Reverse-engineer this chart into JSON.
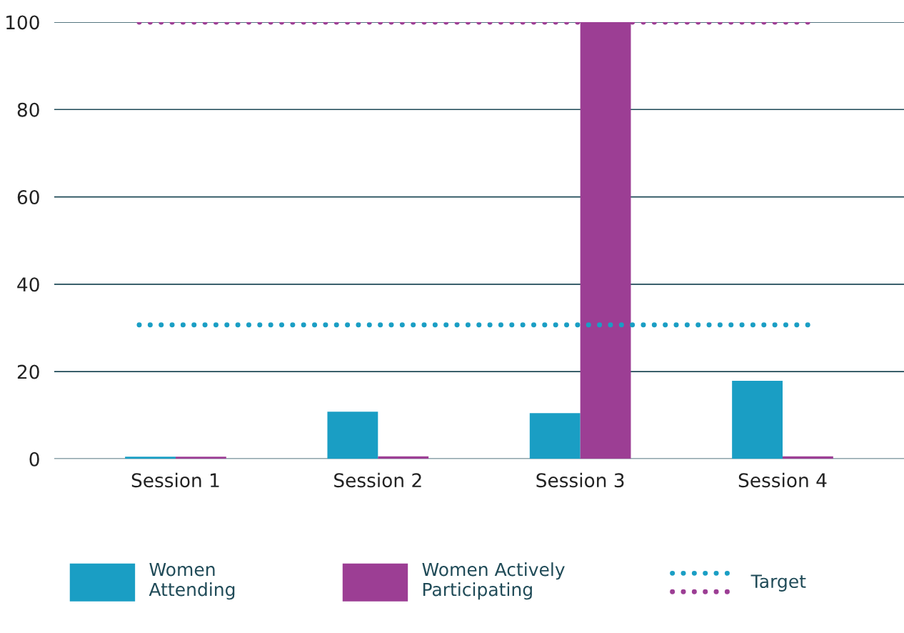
{
  "chart_data": {
    "type": "bar",
    "categories": [
      "Session 1",
      "Session 2",
      "Session 3",
      "Session 4"
    ],
    "series": [
      {
        "name": "Women\nAttending",
        "color": "#1a9ec4",
        "values": [
          0.5,
          10.8,
          10.5,
          17.9
        ]
      },
      {
        "name": "Women Actively\nParticipating",
        "color": "#9c3e94",
        "values": [
          0.5,
          0.6,
          100,
          0.6
        ]
      }
    ],
    "ylim": [
      0,
      100
    ],
    "yticks": [
      0,
      20,
      40,
      60,
      80,
      100
    ],
    "grid": "y",
    "legend": "bottom",
    "ref_lines": [
      {
        "axis": "y",
        "value": 30.7,
        "label": "Target",
        "color": "#1a9ec4",
        "line_style": "dotted"
      },
      {
        "axis": "y",
        "value": 100,
        "color": "#9c3e94",
        "line_style": "dotted"
      }
    ]
  }
}
